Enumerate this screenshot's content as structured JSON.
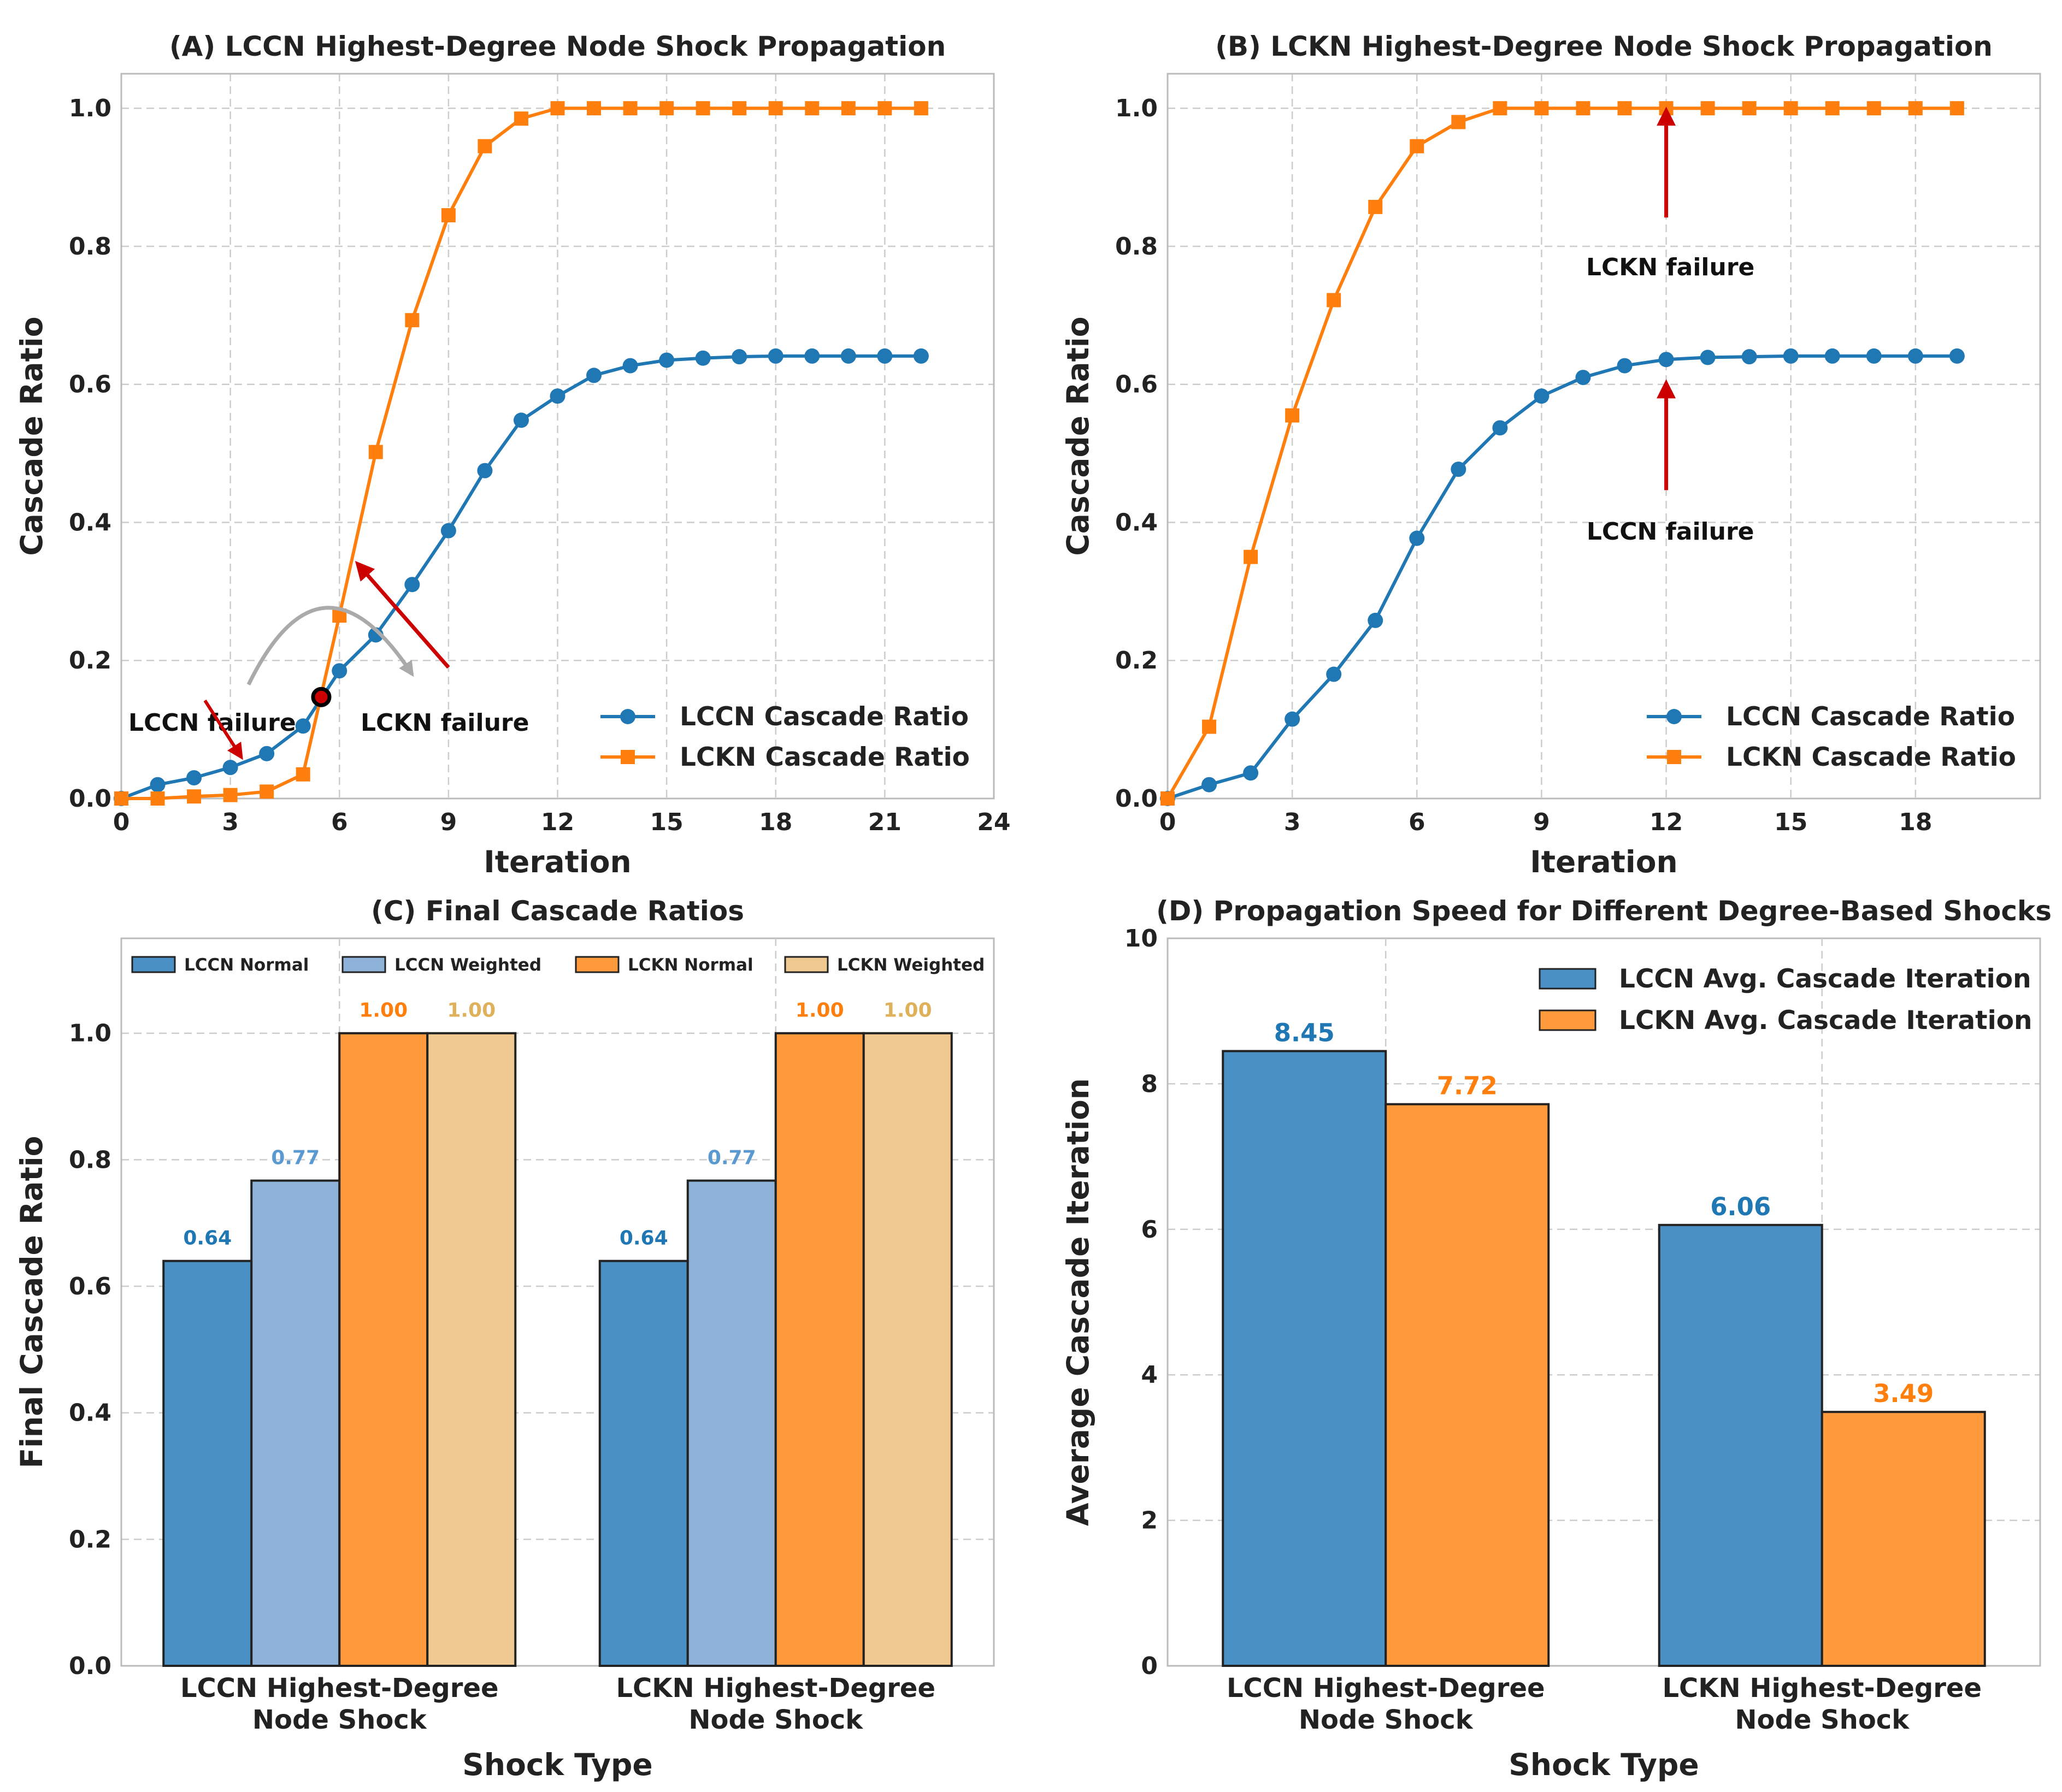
{
  "colors": {
    "blue": "#1f77b4",
    "orange": "#ff7f0e",
    "bar_blue": "#4a90c4",
    "light_blue": "#8fb2d9",
    "bar_orange": "#ff9a3d",
    "tan": "#efc98f",
    "light_blue_label": "#5b9ad0",
    "tan_label": "#e0b15b",
    "arrow_red": "#cc0000",
    "gray_arrow": "#aaaaaa",
    "grid": "#cccccc",
    "frame": "#bbbbbb"
  },
  "chart_data": [
    {
      "id": "A",
      "type": "line",
      "title": "(A) LCCN Highest-Degree Node Shock Propagation",
      "xlabel": "Iteration",
      "ylabel": "Cascade Ratio",
      "xlim": [
        0,
        24
      ],
      "ylim": [
        0,
        1.05
      ],
      "xticks": [
        0,
        3,
        6,
        9,
        12,
        15,
        18,
        21,
        24
      ],
      "yticks": [
        0.0,
        0.2,
        0.4,
        0.6,
        0.8,
        1.0
      ],
      "ytick_labels": [
        "0.0",
        "0.2",
        "0.4",
        "0.6",
        "0.8",
        "1.0"
      ],
      "legend_position": "lower-right",
      "series": [
        {
          "name": "LCCN Cascade Ratio",
          "marker": "circle",
          "color_key": "blue",
          "x": [
            0,
            1,
            2,
            3,
            4,
            5,
            6,
            7,
            8,
            9,
            10,
            11,
            12,
            13,
            14,
            15,
            16,
            17,
            18,
            19,
            20,
            21,
            22
          ],
          "y": [
            0.0,
            0.02,
            0.03,
            0.045,
            0.065,
            0.105,
            0.185,
            0.237,
            0.31,
            0.388,
            0.475,
            0.548,
            0.583,
            0.613,
            0.627,
            0.635,
            0.638,
            0.64,
            0.641,
            0.641,
            0.641,
            0.641,
            0.641
          ]
        },
        {
          "name": "LCKN Cascade Ratio",
          "marker": "square",
          "color_key": "orange",
          "x": [
            0,
            1,
            2,
            3,
            4,
            5,
            6,
            7,
            8,
            9,
            10,
            11,
            12,
            13,
            14,
            15,
            16,
            17,
            18,
            19,
            20,
            21,
            22
          ],
          "y": [
            0.0,
            0.0,
            0.003,
            0.005,
            0.01,
            0.035,
            0.265,
            0.502,
            0.693,
            0.845,
            0.945,
            0.985,
            1.0,
            1.0,
            1.0,
            1.0,
            1.0,
            1.0,
            1.0,
            1.0,
            1.0,
            1.0,
            1.0
          ]
        }
      ],
      "annotations": [
        {
          "text": "LCCN failure",
          "x": 2.5,
          "y": 0.11
        },
        {
          "text": "LCKN failure",
          "x": 8.9,
          "y": 0.11
        }
      ],
      "crossover_point": {
        "x": 5.5,
        "y": 0.147
      }
    },
    {
      "id": "B",
      "type": "line",
      "title": "(B) LCKN Highest-Degree Node Shock Propagation",
      "xlabel": "Iteration",
      "ylabel": "Cascade Ratio",
      "xlim": [
        0,
        21
      ],
      "ylim": [
        0,
        1.05
      ],
      "xticks": [
        0,
        3,
        6,
        9,
        12,
        15,
        18
      ],
      "yticks": [
        0.0,
        0.2,
        0.4,
        0.6,
        0.8,
        1.0
      ],
      "ytick_labels": [
        "0.0",
        "0.2",
        "0.4",
        "0.6",
        "0.8",
        "1.0"
      ],
      "legend_position": "lower-right",
      "series": [
        {
          "name": "LCCN Cascade Ratio",
          "marker": "circle",
          "color_key": "blue",
          "x": [
            0,
            1,
            2,
            3,
            4,
            5,
            6,
            7,
            8,
            9,
            10,
            11,
            12,
            13,
            14,
            15,
            16,
            17,
            18,
            19
          ],
          "y": [
            0.0,
            0.02,
            0.037,
            0.115,
            0.18,
            0.258,
            0.377,
            0.477,
            0.537,
            0.583,
            0.61,
            0.627,
            0.636,
            0.639,
            0.64,
            0.641,
            0.641,
            0.641,
            0.641,
            0.641
          ]
        },
        {
          "name": "LCKN Cascade Ratio",
          "marker": "square",
          "color_key": "orange",
          "x": [
            0,
            1,
            2,
            3,
            4,
            5,
            6,
            7,
            8,
            9,
            10,
            11,
            12,
            13,
            14,
            15,
            16,
            17,
            18,
            19
          ],
          "y": [
            0.0,
            0.104,
            0.35,
            0.555,
            0.722,
            0.857,
            0.945,
            0.98,
            1.0,
            1.0,
            1.0,
            1.0,
            1.0,
            1.0,
            1.0,
            1.0,
            1.0,
            1.0,
            1.0,
            1.0
          ]
        }
      ],
      "annotations": [
        {
          "text": "LCKN failure",
          "x": 12.1,
          "y": 0.77,
          "arrow_to": [
            12,
            1.0
          ]
        },
        {
          "text": "LCCN failure",
          "x": 12.1,
          "y": 0.387,
          "arrow_to": [
            12,
            0.605
          ]
        }
      ]
    },
    {
      "id": "C",
      "type": "bar",
      "title": "(C) Final Cascade Ratios",
      "xlabel": "Shock Type",
      "ylabel": "Final Cascade Ratio",
      "ylim": [
        0,
        1.15
      ],
      "yticks": [
        0.0,
        0.2,
        0.4,
        0.6,
        0.8,
        1.0
      ],
      "ytick_labels": [
        "0.0",
        "0.2",
        "0.4",
        "0.6",
        "0.8",
        "1.0"
      ],
      "categories": [
        [
          "LCCN Highest-Degree",
          "Node Shock"
        ],
        [
          "LCKN Highest-Degree",
          "Node Shock"
        ]
      ],
      "legend_position": "top",
      "series": [
        {
          "name": "LCCN Normal",
          "values": [
            0.64,
            0.64
          ],
          "labels": [
            "0.64",
            "0.64"
          ],
          "color_key": "bar_blue",
          "label_color_key": "blue"
        },
        {
          "name": "LCCN Weighted",
          "values": [
            0.767,
            0.767
          ],
          "labels": [
            "0.77",
            "0.77"
          ],
          "color_key": "light_blue",
          "label_color_key": "light_blue_label"
        },
        {
          "name": "LCKN Normal",
          "values": [
            1.0,
            1.0
          ],
          "labels": [
            "1.00",
            "1.00"
          ],
          "color_key": "bar_orange",
          "label_color_key": "orange"
        },
        {
          "name": "LCKN Weighted",
          "values": [
            1.0,
            1.0
          ],
          "labels": [
            "1.00",
            "1.00"
          ],
          "color_key": "tan",
          "label_color_key": "tan_label"
        }
      ]
    },
    {
      "id": "D",
      "type": "bar",
      "title": "(D) Propagation Speed for Different Degree-Based Shocks",
      "xlabel": "Shock Type",
      "ylabel": "Average Cascade Iteration",
      "ylim": [
        0,
        10
      ],
      "yticks": [
        0,
        2,
        4,
        6,
        8,
        10
      ],
      "ytick_labels": [
        "0",
        "2",
        "4",
        "6",
        "8",
        "10"
      ],
      "categories": [
        [
          "LCCN Highest-Degree",
          "Node Shock"
        ],
        [
          "LCKN Highest-Degree",
          "Node Shock"
        ]
      ],
      "legend_position": "top-right",
      "series": [
        {
          "name": "LCCN Avg. Cascade Iteration",
          "values": [
            8.45,
            6.06
          ],
          "labels": [
            "8.45",
            "6.06"
          ],
          "color_key": "bar_blue",
          "label_color_key": "blue"
        },
        {
          "name": "LCKN Avg. Cascade Iteration",
          "values": [
            7.72,
            3.49
          ],
          "labels": [
            "7.72",
            "3.49"
          ],
          "color_key": "bar_orange",
          "label_color_key": "orange"
        }
      ]
    }
  ]
}
